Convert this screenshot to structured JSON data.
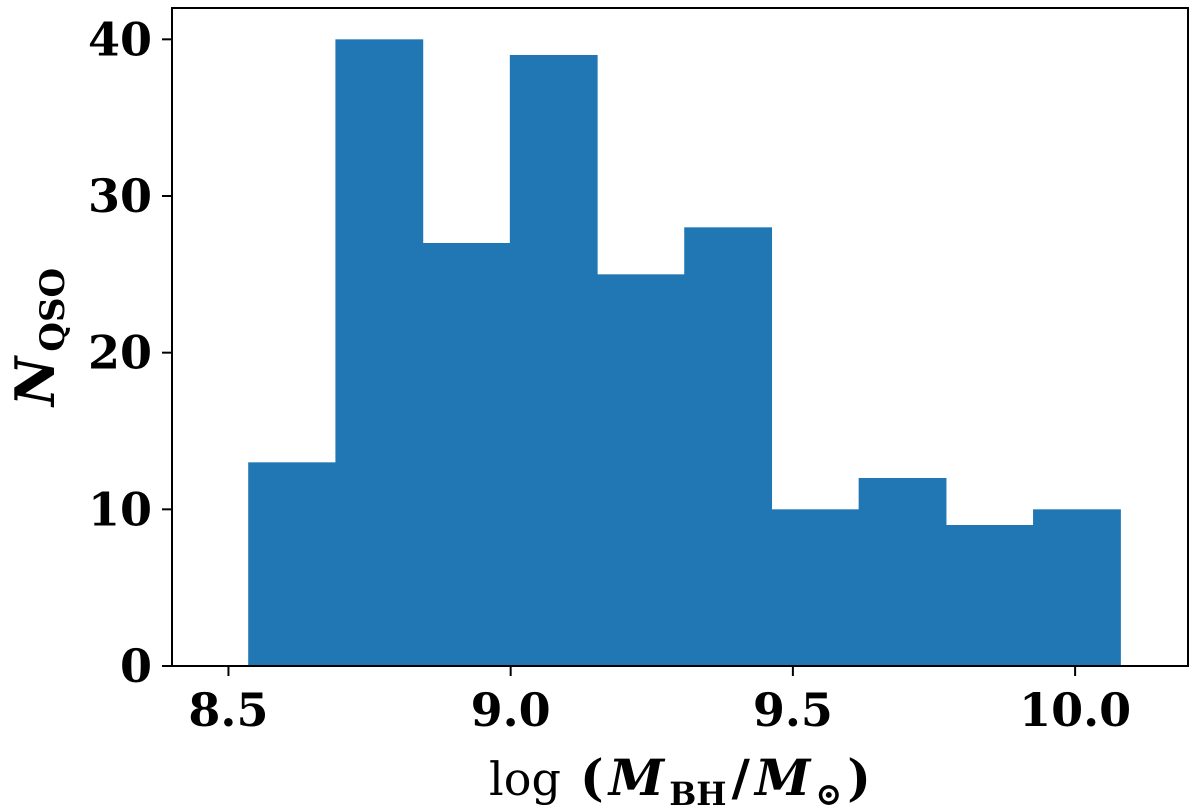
{
  "chart_data": {
    "type": "bar",
    "bin_edges": [
      8.535,
      8.6895,
      8.844,
      8.9985,
      9.153,
      9.3075,
      9.462,
      9.6165,
      9.771,
      9.9255,
      10.08
    ],
    "values": [
      13,
      40,
      27,
      39,
      25,
      28,
      10,
      12,
      9,
      10
    ],
    "color": "#2077b4",
    "xlim": [
      8.4,
      10.2
    ],
    "ylim": [
      0,
      42
    ],
    "xticks": [
      {
        "value": 8.5,
        "label": "8.5"
      },
      {
        "value": 9.0,
        "label": "9.0"
      },
      {
        "value": 9.5,
        "label": "9.5"
      },
      {
        "value": 10.0,
        "label": "10.0"
      }
    ],
    "yticks": [
      {
        "value": 0,
        "label": "0"
      },
      {
        "value": 10,
        "label": "10"
      },
      {
        "value": 20,
        "label": "20"
      },
      {
        "value": 30,
        "label": "30"
      },
      {
        "value": 40,
        "label": "40"
      }
    ],
    "xlabel": {
      "prefix": "log",
      "open": "(",
      "m": "M",
      "bh_sub": "BH",
      "slash": "/",
      "sun_sub": "⊙",
      "close": ")"
    },
    "ylabel": {
      "main": "N",
      "sub": "QSO"
    },
    "grid": false,
    "legend": "none"
  }
}
